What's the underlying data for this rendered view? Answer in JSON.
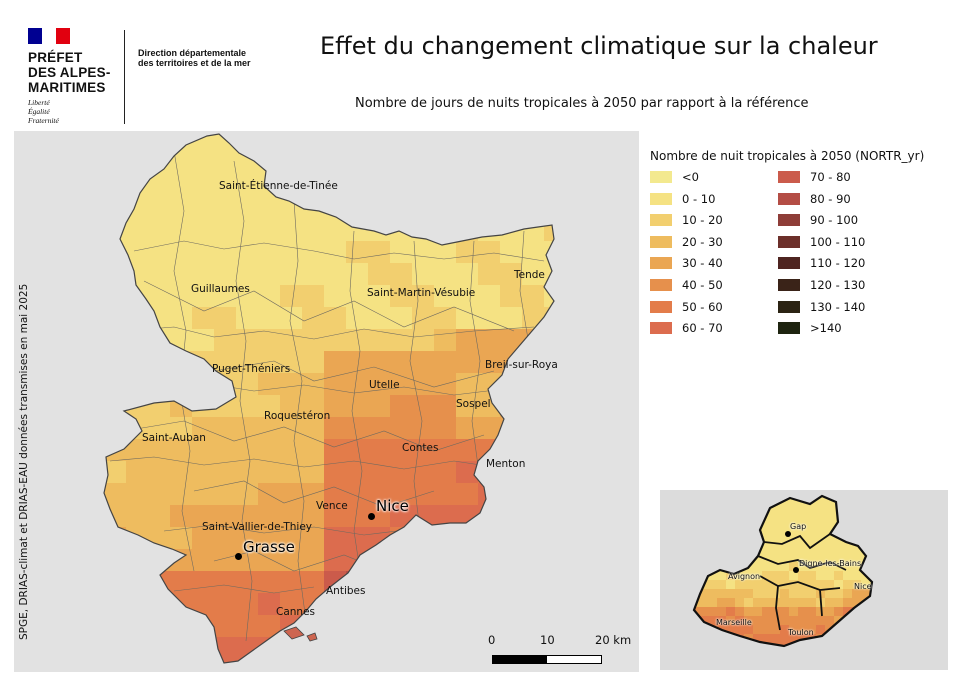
{
  "header": {
    "prefect_lines": [
      "PRÉFET",
      "DES ALPES-",
      "MARITIMES"
    ],
    "motto_lines": [
      "Liberté",
      "Égalité",
      "Fraternité"
    ],
    "department_lines": [
      "Direction départementale",
      "des territoires et de la mer"
    ],
    "title": "Effet du changement climatique sur la chaleur",
    "subtitle": "Nombre de jours de nuits tropicales à 2050 par rapport à la référence"
  },
  "source": "SPGE, DRIAS-climat et DRIAS-EAU données transmises en mai 2025",
  "map": {
    "places": [
      "Saint-Étienne-de-Tinée",
      "Guillaumes",
      "Saint-Martin-Vésubie",
      "Tende",
      "Puget-Théniers",
      "Utelle",
      "Breil-sur-Roya",
      "Roquestéron",
      "Sospel",
      "Saint-Auban",
      "Contes",
      "Menton",
      "Vence",
      "Saint-Vallier-de-Thiey",
      "Antibes",
      "Cannes"
    ],
    "cities": [
      "Nice",
      "Grasse"
    ]
  },
  "scale": {
    "labels": [
      "0",
      "10",
      "20 km"
    ]
  },
  "legend": {
    "title": "Nombre de nuit tropicales à 2050 (NORTR_yr)",
    "classes": [
      {
        "label": "<0",
        "color": "#f3e98f"
      },
      {
        "label": "0 - 10",
        "color": "#f5e283"
      },
      {
        "label": "10 - 20",
        "color": "#f2cf6f"
      },
      {
        "label": "20 - 30",
        "color": "#eebc5f"
      },
      {
        "label": "30 - 40",
        "color": "#eaa653"
      },
      {
        "label": "40 - 50",
        "color": "#e6904c"
      },
      {
        "label": "50 - 60",
        "color": "#e37c4a"
      },
      {
        "label": "60 - 70",
        "color": "#dc6c4e"
      },
      {
        "label": "70 - 80",
        "color": "#cb5b4b"
      },
      {
        "label": "80 - 90",
        "color": "#b44d45"
      },
      {
        "label": "90 - 100",
        "color": "#8e3d38"
      },
      {
        "label": "100 - 110",
        "color": "#6c2f2a"
      },
      {
        "label": "110 - 120",
        "color": "#4e2420"
      },
      {
        "label": "120 - 130",
        "color": "#3a2318"
      },
      {
        "label": "130 - 140",
        "color": "#2b2313"
      },
      {
        "label": ">140",
        "color": "#1e2410"
      }
    ]
  },
  "inset": {
    "places": [
      "Gap",
      "Digne-les-Bains",
      "Avignon",
      "Nice",
      "Marseille",
      "Toulon"
    ]
  }
}
